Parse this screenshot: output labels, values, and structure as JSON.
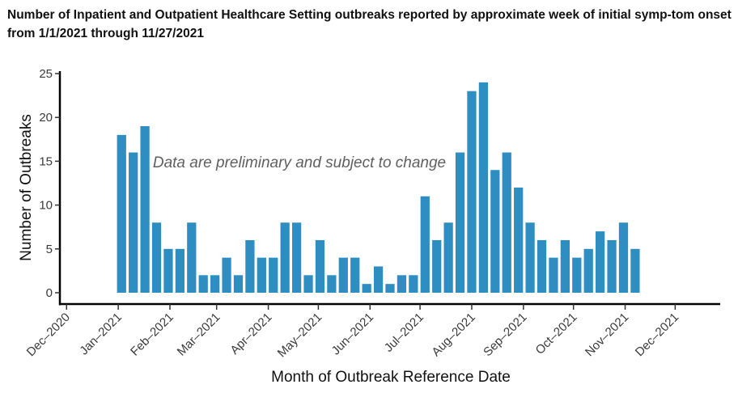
{
  "chart_data": {
    "type": "bar",
    "title": "Number of Inpatient and Outpatient Healthcare Setting outbreaks reported by approximate week of initial symp-tom onset from 1/1/2021 through 11/27/2021",
    "xlabel": "Month of Outbreak Reference Date",
    "ylabel": "Number of Outbreaks",
    "annotation": "Data are preliminary and subject to change",
    "ylim": [
      0,
      25
    ],
    "yticks": [
      0,
      5,
      10,
      15,
      20,
      25
    ],
    "xlim": [
      "2020-11-27",
      "2021-12-28"
    ],
    "xtick_dates": [
      "2020-12-01",
      "2021-01-01",
      "2021-02-01",
      "2021-03-01",
      "2021-04-01",
      "2021-05-01",
      "2021-06-01",
      "2021-07-01",
      "2021-08-01",
      "2021-09-01",
      "2021-10-01",
      "2021-11-01",
      "2021-12-01"
    ],
    "xtick_labels": [
      "Dec–2020",
      "Jan–2021",
      "Feb–2021",
      "Mar–2021",
      "Apr–2021",
      "May–2021",
      "Jun–2021",
      "Jul–2021",
      "Aug–2021",
      "Sep–2021",
      "Oct–2021",
      "Nov–2021",
      "Dec–2021"
    ],
    "x": [
      "2021-01-03",
      "2021-01-10",
      "2021-01-17",
      "2021-01-24",
      "2021-01-31",
      "2021-02-07",
      "2021-02-14",
      "2021-02-21",
      "2021-02-28",
      "2021-03-07",
      "2021-03-14",
      "2021-03-21",
      "2021-03-28",
      "2021-04-04",
      "2021-04-11",
      "2021-04-18",
      "2021-04-25",
      "2021-05-02",
      "2021-05-09",
      "2021-05-16",
      "2021-05-23",
      "2021-05-30",
      "2021-06-06",
      "2021-06-13",
      "2021-06-20",
      "2021-06-27",
      "2021-07-04",
      "2021-07-11",
      "2021-07-18",
      "2021-07-25",
      "2021-08-01",
      "2021-08-08",
      "2021-08-15",
      "2021-08-22",
      "2021-08-29",
      "2021-09-05",
      "2021-09-12",
      "2021-09-19",
      "2021-09-26",
      "2021-10-03",
      "2021-10-10",
      "2021-10-17",
      "2021-10-24",
      "2021-10-31",
      "2021-11-07"
    ],
    "values": [
      18,
      16,
      19,
      8,
      5,
      5,
      8,
      2,
      2,
      4,
      2,
      6,
      4,
      4,
      8,
      8,
      2,
      6,
      2,
      4,
      4,
      1,
      3,
      1,
      2,
      2,
      11,
      6,
      8,
      16,
      23,
      24,
      14,
      16,
      12,
      8,
      6,
      4,
      6,
      4,
      5,
      7,
      6,
      8,
      5
    ],
    "bar_color": "#2e8ec2",
    "grid": false,
    "legend": "none"
  }
}
